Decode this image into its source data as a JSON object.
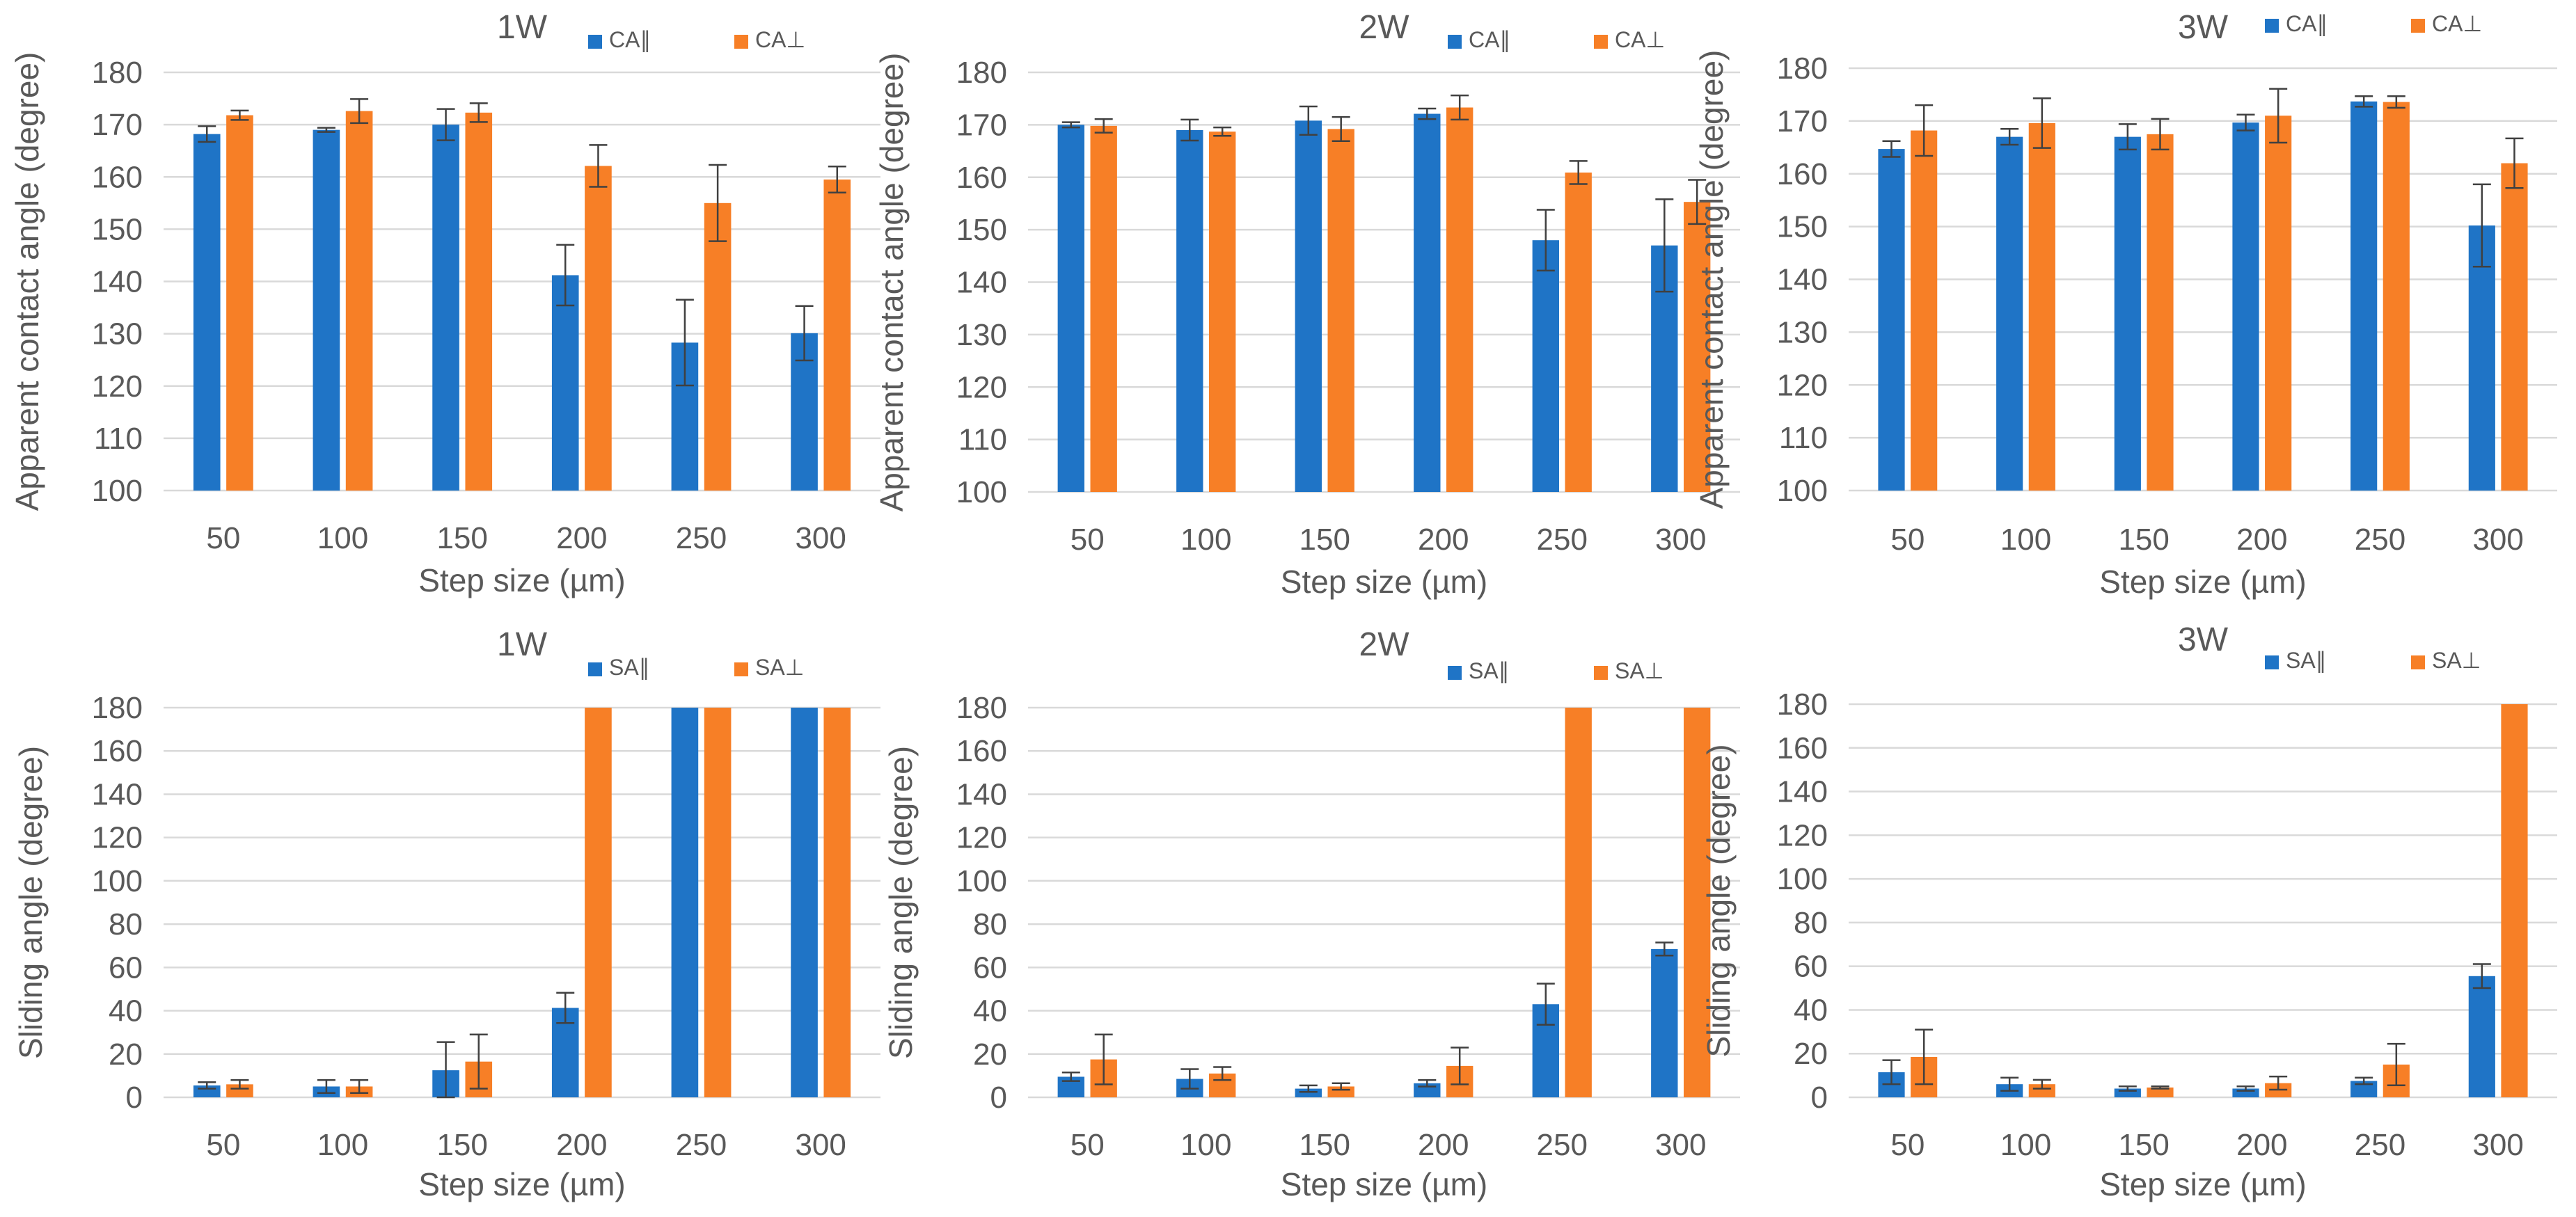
{
  "figure": {
    "xlabel": "Step size (µm)",
    "ylabel_ca": "Apparent contact angle (degree)",
    "ylabel_sa": "Sliding angle (degree)",
    "colors": {
      "parallel": "#1F74C6",
      "perpendicular": "#F77F26",
      "grid": "#D9D9D9",
      "text": "#595959"
    }
  },
  "chart_data": [
    {
      "type": "bar",
      "title": "1W",
      "categories": [
        "50",
        "100",
        "150",
        "200",
        "250",
        "300"
      ],
      "xlabel": "Step size (µm)",
      "ylabel": "Apparent contact angle (degree)",
      "ylim": [
        100,
        180
      ],
      "yticks": [
        100,
        110,
        120,
        130,
        140,
        150,
        160,
        170,
        180
      ],
      "grid": true,
      "legend": "top-right",
      "series": [
        {
          "name": "CA∥",
          "color": "#1F74C6",
          "values": [
            168.2,
            169.0,
            170.0,
            141.2,
            128.3,
            130.1
          ],
          "errors": [
            1.5,
            0.4,
            3.0,
            5.8,
            8.2,
            5.2
          ]
        },
        {
          "name": "CA⊥",
          "color": "#F77F26",
          "values": [
            171.8,
            172.6,
            172.3,
            162.1,
            155.0,
            159.5
          ],
          "errors": [
            0.9,
            2.3,
            1.8,
            4.0,
            7.3,
            2.5
          ]
        }
      ]
    },
    {
      "type": "bar",
      "title": "2W",
      "categories": [
        "50",
        "100",
        "150",
        "200",
        "250",
        "300"
      ],
      "xlabel": "Step size (µm)",
      "ylabel": "Apparent contact angle (degree)",
      "ylim": [
        100,
        180
      ],
      "yticks": [
        100,
        110,
        120,
        130,
        140,
        150,
        160,
        170,
        180
      ],
      "grid": true,
      "legend": "top-right",
      "series": [
        {
          "name": "CA∥",
          "color": "#1F74C6",
          "values": [
            170.0,
            169.0,
            170.8,
            172.1,
            148.0,
            147.0
          ],
          "errors": [
            0.5,
            2.0,
            2.7,
            1.0,
            5.8,
            8.8
          ]
        },
        {
          "name": "CA⊥",
          "color": "#F77F26",
          "values": [
            169.8,
            168.7,
            169.2,
            173.3,
            160.9,
            155.3
          ],
          "errors": [
            1.3,
            0.8,
            2.3,
            2.3,
            2.2,
            4.2
          ]
        }
      ]
    },
    {
      "type": "bar",
      "title": "3W",
      "categories": [
        "50",
        "100",
        "150",
        "200",
        "250",
        "300"
      ],
      "xlabel": "Step size (µm)",
      "ylabel": "Apparent contact angle (degree)",
      "ylim": [
        100,
        180
      ],
      "yticks": [
        100,
        110,
        120,
        130,
        140,
        150,
        160,
        170,
        180
      ],
      "grid": true,
      "legend": "top-right",
      "series": [
        {
          "name": "CA∥",
          "color": "#1F74C6",
          "values": [
            164.7,
            167.0,
            167.0,
            169.7,
            173.7,
            150.2
          ],
          "errors": [
            1.5,
            1.5,
            2.4,
            1.5,
            1.0,
            7.8
          ]
        },
        {
          "name": "CA⊥",
          "color": "#F77F26",
          "values": [
            168.2,
            169.6,
            167.5,
            171.0,
            173.6,
            162.0
          ],
          "errors": [
            4.8,
            4.7,
            2.9,
            5.1,
            1.1,
            4.7
          ]
        }
      ]
    },
    {
      "type": "bar",
      "title": "1W",
      "categories": [
        "50",
        "100",
        "150",
        "200",
        "250",
        "300"
      ],
      "xlabel": "Step size (µm)",
      "ylabel": "Sliding angle (degree)",
      "ylim": [
        0,
        180
      ],
      "yticks": [
        0,
        20,
        40,
        60,
        80,
        100,
        120,
        140,
        160,
        180
      ],
      "grid": true,
      "legend": "top-right",
      "series": [
        {
          "name": "SA∥",
          "color": "#1F74C6",
          "values": [
            5.5,
            5.0,
            12.5,
            41.3,
            180,
            180
          ],
          "errors": [
            1.5,
            3.0,
            13.0,
            7.0,
            0,
            0
          ]
        },
        {
          "name": "SA⊥",
          "color": "#F77F26",
          "values": [
            6.0,
            5.0,
            16.5,
            180,
            180,
            180
          ],
          "errors": [
            2.0,
            3.0,
            12.5,
            0,
            0,
            0
          ]
        }
      ]
    },
    {
      "type": "bar",
      "title": "2W",
      "categories": [
        "50",
        "100",
        "150",
        "200",
        "250",
        "300"
      ],
      "xlabel": "Step size (µm)",
      "ylabel": "Sliding angle (degree)",
      "ylim": [
        0,
        180
      ],
      "yticks": [
        0,
        20,
        40,
        60,
        80,
        100,
        120,
        140,
        160,
        180
      ],
      "grid": true,
      "legend": "top-right",
      "series": [
        {
          "name": "SA∥",
          "color": "#1F74C6",
          "values": [
            9.5,
            8.5,
            4.0,
            6.5,
            43.0,
            68.5
          ],
          "errors": [
            2.0,
            4.5,
            1.5,
            1.5,
            9.5,
            3.0
          ]
        },
        {
          "name": "SA⊥",
          "color": "#F77F26",
          "values": [
            17.5,
            11.0,
            5.0,
            14.5,
            180,
            180
          ],
          "errors": [
            11.5,
            3.0,
            1.5,
            8.5,
            0,
            0
          ]
        }
      ]
    },
    {
      "type": "bar",
      "title": "3W",
      "categories": [
        "50",
        "100",
        "150",
        "200",
        "250",
        "300"
      ],
      "xlabel": "Step size (µm)",
      "ylabel": "Sliding angle (degree)",
      "ylim": [
        0,
        180
      ],
      "yticks": [
        0,
        20,
        40,
        60,
        80,
        100,
        120,
        140,
        160,
        180
      ],
      "grid": true,
      "legend": "top-right",
      "series": [
        {
          "name": "SA∥",
          "color": "#1F74C6",
          "values": [
            11.5,
            6.0,
            4.0,
            4.0,
            7.5,
            55.5
          ],
          "errors": [
            5.5,
            3.0,
            1.0,
            1.0,
            1.5,
            5.5
          ]
        },
        {
          "name": "SA⊥",
          "color": "#F77F26",
          "values": [
            18.5,
            6.0,
            4.5,
            6.5,
            15.0,
            180
          ],
          "errors": [
            12.5,
            2.0,
            0.5,
            3.0,
            9.5,
            0
          ]
        }
      ]
    }
  ]
}
